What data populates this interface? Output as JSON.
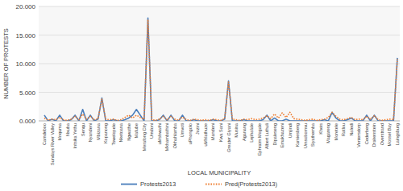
{
  "chart_data": {
    "type": "line",
    "x_label": "LOCAL MUNICIPALITY",
    "y_label": "NUMBER OF PROTESTS",
    "categories": [
      "Camdeboo",
      null,
      "Sundays River Valley",
      null,
      "Mnquma",
      null,
      "Nxuba",
      null,
      "Intsika Yethu",
      null,
      "Senqu",
      null,
      "Nyandeni",
      null,
      "Mbizana",
      null,
      "Kopanong",
      null,
      "Tswelopele",
      null,
      "Nketoana",
      null,
      "Ngwathe",
      null,
      "Mafube",
      null,
      "Merafong City",
      null,
      "Umdoni",
      null,
      "uMshwathi",
      null,
      "Mkhambathini",
      null,
      "Okhahlamba",
      null,
      "Umvoti",
      null,
      "uPhongolo",
      null,
      "Jozini",
      null,
      "uMhlathuze",
      null,
      "Mandeni",
      null,
      "Kwa Sani",
      null,
      "Greater Giyani",
      null,
      "Musina",
      null,
      "Aganang",
      null,
      "Lephalale",
      null,
      "Ephraim Mogale",
      null,
      "Albert Luthuli",
      null,
      "Dipaleseng",
      null,
      "Emakhazeni",
      null,
      "Umjindi",
      null,
      "Kamiesberg",
      null,
      "Umsobomvu",
      null,
      "Siyathemba",
      null,
      "Kheis",
      null,
      "Magareng",
      null,
      "Moretele",
      null,
      "Ratlou",
      null,
      "Naledi",
      null,
      "Ventersdorp",
      null,
      "Cederberg",
      null,
      "Drakenstein",
      null,
      "Overstrand",
      null,
      "Mossel Bay",
      null,
      "Laingsburg"
    ],
    "series": [
      {
        "name": "Protests2013",
        "color": "#4a7ebb",
        "line_style": "solid",
        "values": [
          1.0,
          0,
          0.3,
          0,
          1.0,
          0,
          0,
          0.2,
          1.0,
          0,
          2.0,
          0,
          1.0,
          0,
          0.3,
          4.0,
          0,
          0,
          0.2,
          0,
          0,
          0.2,
          0.5,
          1.0,
          2.0,
          1.0,
          0,
          18.0,
          0,
          0,
          0.2,
          1.0,
          0,
          1.0,
          0,
          0,
          1.0,
          0,
          0,
          0.2,
          0,
          0,
          0,
          0,
          0.2,
          0,
          0,
          0.3,
          7.0,
          0,
          0,
          0,
          0.2,
          0,
          0,
          0,
          0,
          0.2,
          1.0,
          0,
          0.5,
          0,
          0,
          0.3,
          0,
          0,
          0,
          0,
          0,
          0,
          0,
          0,
          0,
          0.2,
          0,
          1.5,
          0.5,
          0,
          0,
          0.2,
          0.5,
          0,
          0,
          0,
          1.0,
          0,
          1.0,
          0,
          0,
          0,
          0,
          0,
          11.0
        ]
      },
      {
        "name": "Pred(Protests2013)",
        "color": "#ed7d31",
        "line_style": "dotted",
        "values": [
          0.5,
          0.1,
          0.3,
          0.2,
          0.6,
          0.2,
          0.1,
          0.3,
          0.8,
          0.2,
          1.2,
          0.3,
          0.8,
          0.2,
          0.4,
          3.8,
          0.3,
          0.2,
          0.3,
          0.1,
          0.2,
          0.6,
          1.0,
          0.5,
          1.0,
          0.6,
          0.3,
          17.7,
          0.2,
          0.1,
          0.3,
          0.8,
          0.2,
          0.8,
          0.3,
          0.1,
          0.7,
          0.2,
          0.1,
          0.3,
          0.2,
          0.1,
          0.2,
          0.1,
          0.3,
          0.2,
          0.1,
          0.4,
          6.8,
          0.3,
          0.2,
          0.1,
          0.3,
          0.2,
          0.4,
          0.2,
          0.3,
          0.5,
          0.9,
          0.4,
          1.2,
          0.5,
          1.4,
          0.6,
          1.5,
          0.4,
          0.3,
          0.2,
          0.1,
          0.2,
          0.3,
          0.1,
          0.2,
          0.3,
          0.6,
          1.5,
          0.8,
          0.3,
          0.2,
          0.4,
          0.6,
          0.2,
          0.3,
          0.2,
          0.8,
          0.3,
          0.9,
          0.2,
          0.1,
          0.2,
          0.3,
          0.2,
          10.8
        ]
      }
    ],
    "ylim": [
      0,
      20
    ],
    "yticks": [
      {
        "value": 0,
        "label": "0.000"
      },
      {
        "value": 5,
        "label": "5.000"
      },
      {
        "value": 10,
        "label": "10.000"
      },
      {
        "value": 15,
        "label": "15.000"
      },
      {
        "value": 20,
        "label": "20.000"
      }
    ],
    "grid": true,
    "legend": "bottom"
  }
}
